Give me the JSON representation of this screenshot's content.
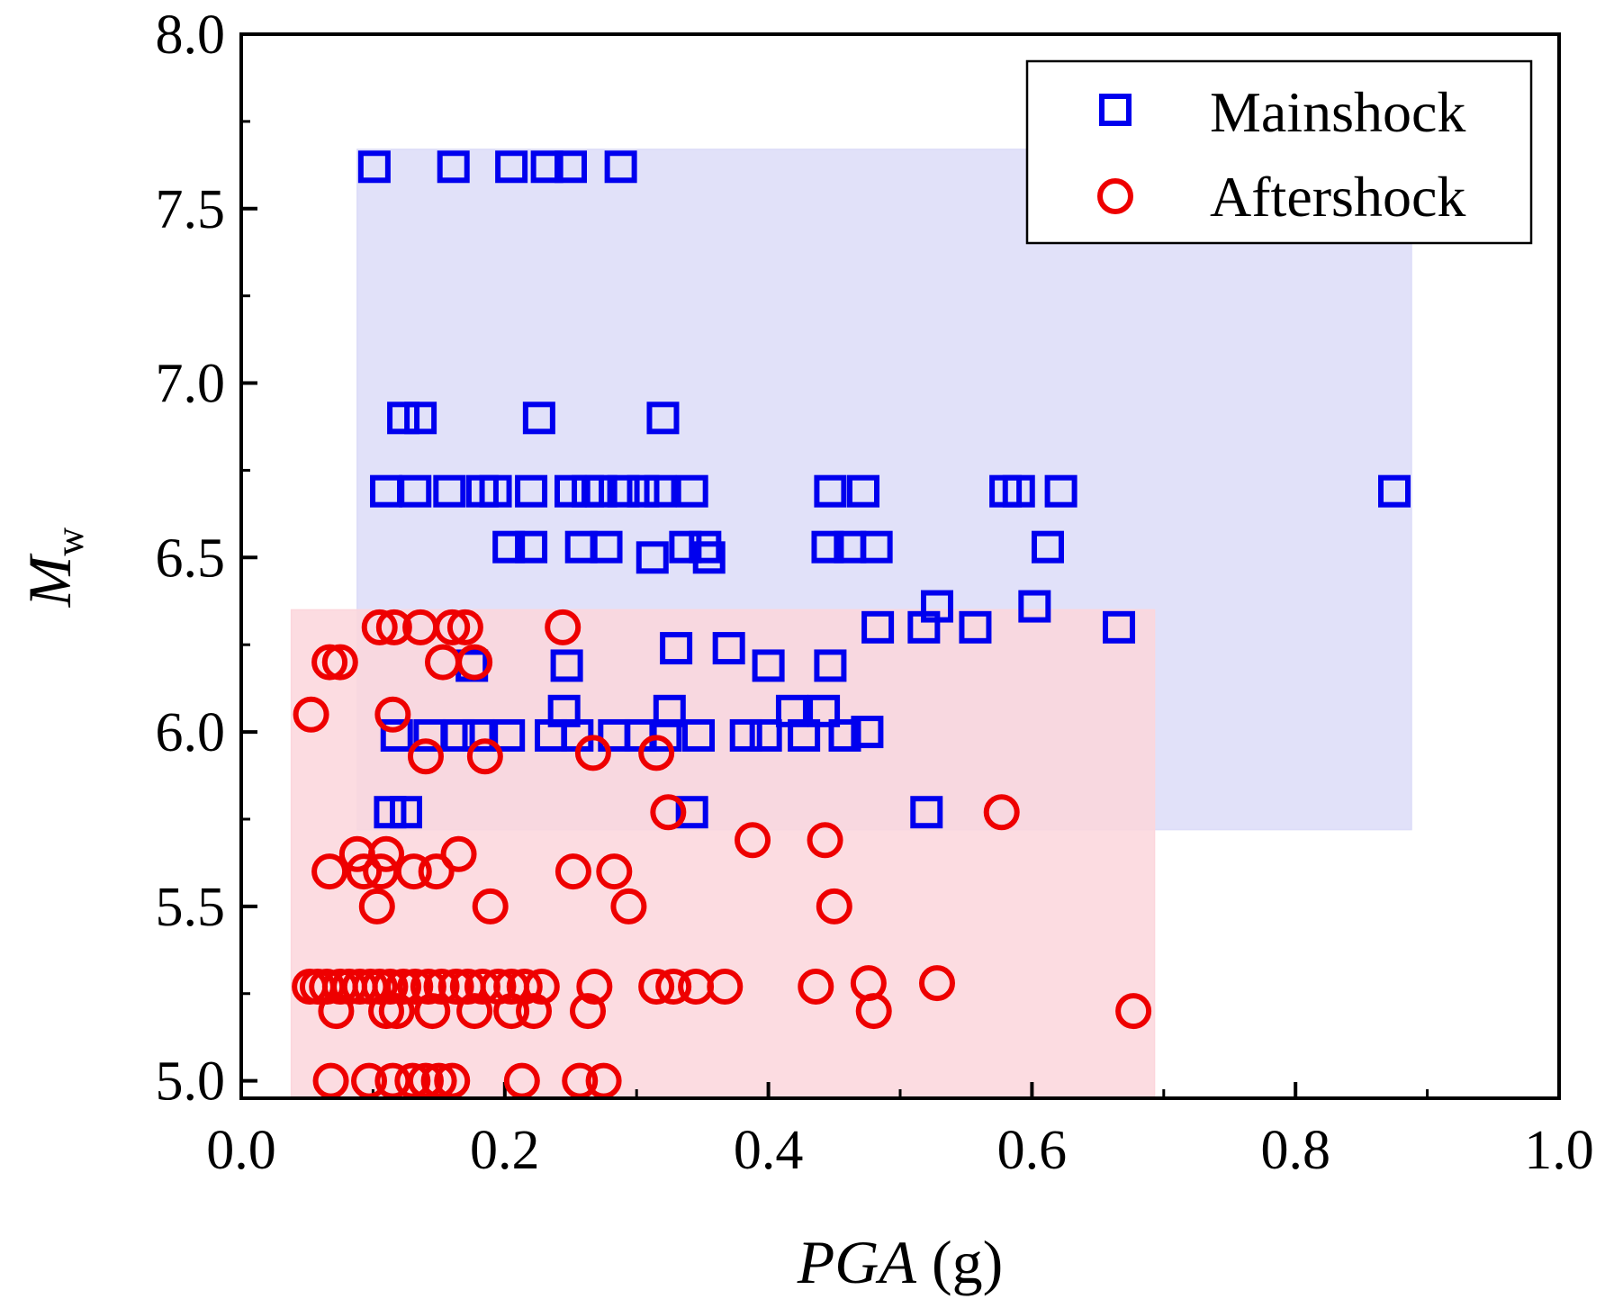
{
  "chart_data": {
    "type": "scatter",
    "title": "",
    "xlabel": {
      "italic": "PGA",
      "rest": " (g)"
    },
    "ylabel": {
      "main": "M",
      "sub": "w"
    },
    "xlim": [
      0.0,
      1.0
    ],
    "ylim": [
      4.95,
      8.0
    ],
    "xticks": [
      "0.0",
      "0.2",
      "0.4",
      "0.6",
      "0.8",
      "1.0"
    ],
    "xtick_values": [
      0.0,
      0.2,
      0.4,
      0.6,
      0.8,
      1.0
    ],
    "yticks": [
      "5.0",
      "5.5",
      "6.0",
      "6.5",
      "7.0",
      "7.5",
      "8.0"
    ],
    "ytick_values": [
      5.0,
      5.5,
      6.0,
      6.5,
      7.0,
      7.5,
      8.0
    ],
    "legend_position": "top-right",
    "regions": [
      {
        "name": "mainshock-range",
        "x": [
          0.088,
          0.888
        ],
        "y": [
          5.72,
          7.67
        ],
        "color": "#dcdcf8"
      },
      {
        "name": "aftershock-range",
        "x": [
          0.038,
          0.693
        ],
        "y": [
          4.95,
          6.35
        ],
        "color": "#fcd6dc"
      }
    ],
    "series": [
      {
        "name": "Mainshock",
        "marker": "square",
        "color": "#0000ee",
        "points": [
          [
            0.101,
            7.62
          ],
          [
            0.161,
            7.62
          ],
          [
            0.205,
            7.62
          ],
          [
            0.232,
            7.62
          ],
          [
            0.25,
            7.62
          ],
          [
            0.288,
            7.62
          ],
          [
            0.123,
            6.9
          ],
          [
            0.136,
            6.9
          ],
          [
            0.226,
            6.9
          ],
          [
            0.32,
            6.9
          ],
          [
            0.11,
            6.69
          ],
          [
            0.132,
            6.69
          ],
          [
            0.158,
            6.69
          ],
          [
            0.183,
            6.69
          ],
          [
            0.193,
            6.69
          ],
          [
            0.22,
            6.69
          ],
          [
            0.25,
            6.69
          ],
          [
            0.263,
            6.69
          ],
          [
            0.273,
            6.69
          ],
          [
            0.29,
            6.69
          ],
          [
            0.305,
            6.69
          ],
          [
            0.318,
            6.69
          ],
          [
            0.342,
            6.69
          ],
          [
            0.447,
            6.69
          ],
          [
            0.472,
            6.69
          ],
          [
            0.58,
            6.69
          ],
          [
            0.59,
            6.69
          ],
          [
            0.622,
            6.69
          ],
          [
            0.875,
            6.69
          ],
          [
            0.203,
            6.53
          ],
          [
            0.22,
            6.53
          ],
          [
            0.258,
            6.53
          ],
          [
            0.277,
            6.53
          ],
          [
            0.312,
            6.5
          ],
          [
            0.337,
            6.53
          ],
          [
            0.352,
            6.53
          ],
          [
            0.355,
            6.5
          ],
          [
            0.445,
            6.53
          ],
          [
            0.462,
            6.53
          ],
          [
            0.482,
            6.53
          ],
          [
            0.612,
            6.53
          ],
          [
            0.528,
            6.36
          ],
          [
            0.602,
            6.36
          ],
          [
            0.483,
            6.3
          ],
          [
            0.518,
            6.3
          ],
          [
            0.557,
            6.3
          ],
          [
            0.666,
            6.3
          ],
          [
            0.33,
            6.24
          ],
          [
            0.37,
            6.24
          ],
          [
            0.175,
            6.19
          ],
          [
            0.247,
            6.19
          ],
          [
            0.4,
            6.19
          ],
          [
            0.447,
            6.19
          ],
          [
            0.245,
            6.06
          ],
          [
            0.325,
            6.06
          ],
          [
            0.418,
            6.06
          ],
          [
            0.442,
            6.06
          ],
          [
            0.118,
            5.99
          ],
          [
            0.143,
            5.99
          ],
          [
            0.165,
            5.99
          ],
          [
            0.18,
            5.99
          ],
          [
            0.203,
            5.99
          ],
          [
            0.235,
            5.99
          ],
          [
            0.255,
            5.99
          ],
          [
            0.283,
            5.99
          ],
          [
            0.303,
            5.99
          ],
          [
            0.322,
            5.99
          ],
          [
            0.347,
            5.99
          ],
          [
            0.383,
            5.99
          ],
          [
            0.398,
            5.99
          ],
          [
            0.427,
            5.99
          ],
          [
            0.458,
            5.99
          ],
          [
            0.475,
            6.0
          ],
          [
            0.113,
            5.77
          ],
          [
            0.125,
            5.77
          ],
          [
            0.342,
            5.77
          ],
          [
            0.52,
            5.77
          ]
        ]
      },
      {
        "name": "Aftershock",
        "marker": "circle",
        "color": "#ee0000",
        "points": [
          [
            0.105,
            6.3
          ],
          [
            0.116,
            6.3
          ],
          [
            0.136,
            6.3
          ],
          [
            0.16,
            6.3
          ],
          [
            0.17,
            6.3
          ],
          [
            0.244,
            6.3
          ],
          [
            0.067,
            6.2
          ],
          [
            0.075,
            6.2
          ],
          [
            0.153,
            6.2
          ],
          [
            0.177,
            6.2
          ],
          [
            0.053,
            6.05
          ],
          [
            0.115,
            6.05
          ],
          [
            0.14,
            5.93
          ],
          [
            0.185,
            5.93
          ],
          [
            0.267,
            5.94
          ],
          [
            0.315,
            5.94
          ],
          [
            0.324,
            5.77
          ],
          [
            0.577,
            5.77
          ],
          [
            0.388,
            5.69
          ],
          [
            0.443,
            5.69
          ],
          [
            0.088,
            5.65
          ],
          [
            0.11,
            5.65
          ],
          [
            0.165,
            5.65
          ],
          [
            0.067,
            5.6
          ],
          [
            0.093,
            5.6
          ],
          [
            0.106,
            5.6
          ],
          [
            0.131,
            5.6
          ],
          [
            0.148,
            5.6
          ],
          [
            0.252,
            5.6
          ],
          [
            0.283,
            5.6
          ],
          [
            0.103,
            5.5
          ],
          [
            0.189,
            5.5
          ],
          [
            0.294,
            5.5
          ],
          [
            0.45,
            5.5
          ],
          [
            0.052,
            5.27
          ],
          [
            0.058,
            5.27
          ],
          [
            0.065,
            5.27
          ],
          [
            0.075,
            5.27
          ],
          [
            0.082,
            5.27
          ],
          [
            0.09,
            5.27
          ],
          [
            0.098,
            5.27
          ],
          [
            0.105,
            5.27
          ],
          [
            0.113,
            5.27
          ],
          [
            0.123,
            5.27
          ],
          [
            0.132,
            5.27
          ],
          [
            0.142,
            5.27
          ],
          [
            0.152,
            5.27
          ],
          [
            0.163,
            5.27
          ],
          [
            0.172,
            5.27
          ],
          [
            0.183,
            5.27
          ],
          [
            0.195,
            5.27
          ],
          [
            0.205,
            5.27
          ],
          [
            0.215,
            5.27
          ],
          [
            0.228,
            5.27
          ],
          [
            0.268,
            5.27
          ],
          [
            0.315,
            5.27
          ],
          [
            0.328,
            5.27
          ],
          [
            0.345,
            5.27
          ],
          [
            0.367,
            5.27
          ],
          [
            0.436,
            5.27
          ],
          [
            0.476,
            5.28
          ],
          [
            0.528,
            5.28
          ],
          [
            0.072,
            5.2
          ],
          [
            0.11,
            5.2
          ],
          [
            0.118,
            5.2
          ],
          [
            0.145,
            5.2
          ],
          [
            0.177,
            5.2
          ],
          [
            0.205,
            5.2
          ],
          [
            0.222,
            5.2
          ],
          [
            0.263,
            5.2
          ],
          [
            0.48,
            5.2
          ],
          [
            0.677,
            5.2
          ],
          [
            0.068,
            5.0
          ],
          [
            0.097,
            5.0
          ],
          [
            0.115,
            5.0
          ],
          [
            0.13,
            5.0
          ],
          [
            0.14,
            5.0
          ],
          [
            0.15,
            5.0
          ],
          [
            0.16,
            5.0
          ],
          [
            0.213,
            5.0
          ],
          [
            0.257,
            5.0
          ],
          [
            0.275,
            5.0
          ]
        ]
      }
    ]
  }
}
